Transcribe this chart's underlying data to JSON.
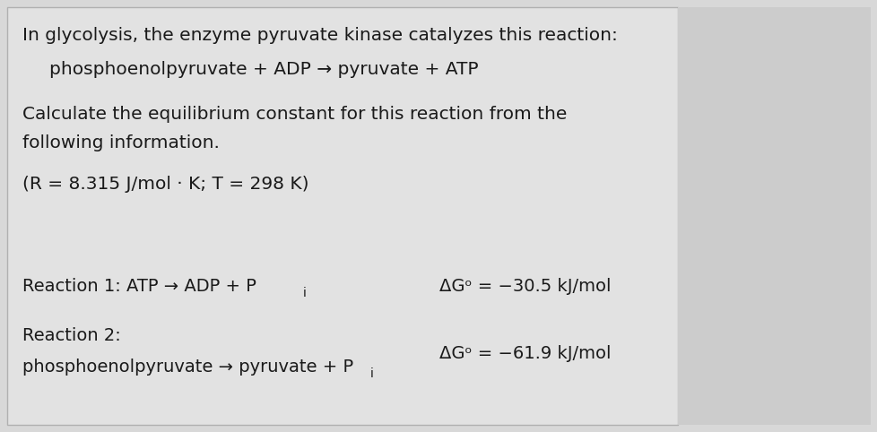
{
  "bg_color": "#d8d8d8",
  "content_bg": "#e8e8e8",
  "right_panel_bg": "#c8c8c8",
  "text_color": "#1a1a1a",
  "line1": "In glycolysis, the enzyme pyruvate kinase catalyzes this reaction:",
  "line2": "phosphoenolpyruvate + ADP → pyruvate + ATP",
  "line3": "Calculate the equilibrium constant for this reaction from the",
  "line4": "following information.",
  "line5": "(R = 8.315 J/mol · K; T = 298 K)",
  "rxn1_left": "Reaction 1: ATP → ADP + P",
  "rxn1_sub": "i",
  "rxn1_right": "ΔGᵒ = −30.5 kJ/mol",
  "rxn2_label": "Reaction 2:",
  "rxn2_left": "phosphoenolpyruvate → pyruvate + P",
  "rxn2_sub": "i",
  "rxn2_right": "ΔGᵒ = −61.9 kJ/mol",
  "font_size_main": 14.5,
  "font_size_rxn": 14,
  "font_size_sub": 10,
  "font_family": "DejaVu Sans"
}
